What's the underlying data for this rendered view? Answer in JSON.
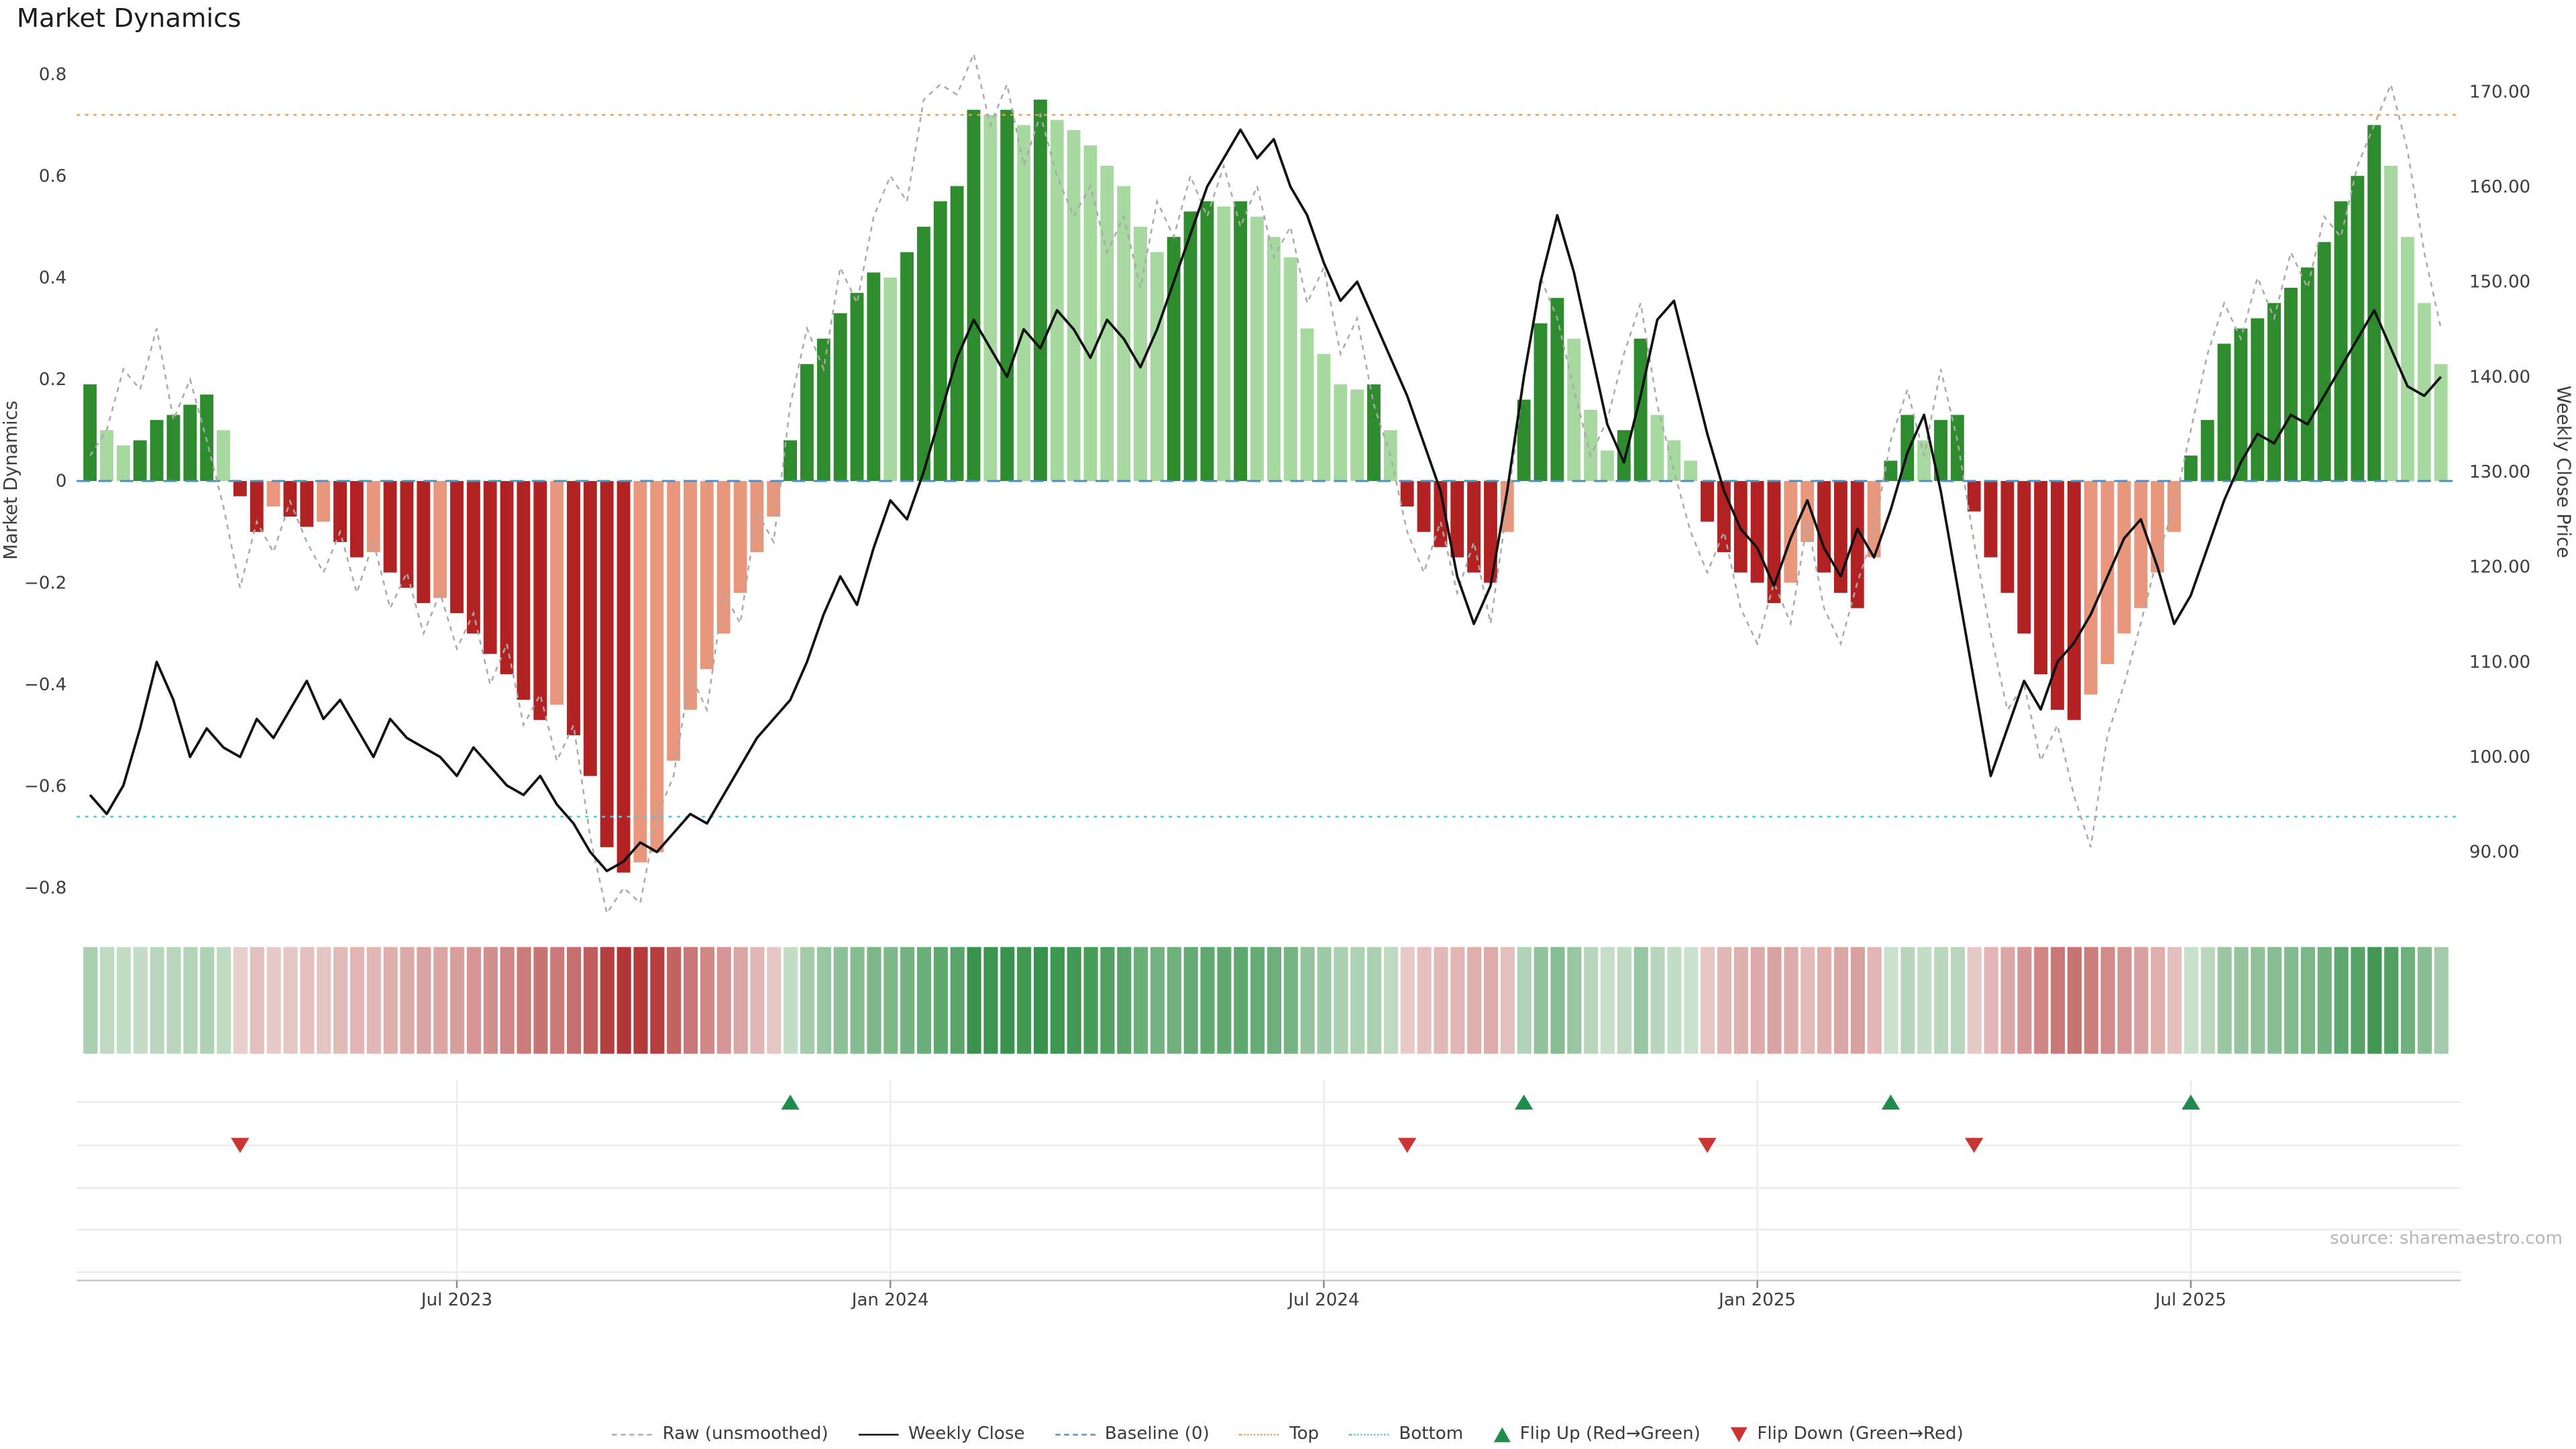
{
  "title": "Market Dynamics",
  "source": "source: sharemaestro.com",
  "colors": {
    "bar_up_strong": "#2e8b2e",
    "bar_up_weak": "#a6d8a0",
    "bar_down_strong": "#b22222",
    "bar_down_weak": "#e8977d",
    "close_line": "#111111",
    "raw_line": "#a9a9a9",
    "baseline": "#4a90c2",
    "top_line": "#dfa35f",
    "bottom_line": "#55c8d5",
    "flip_up": "#1f8b4c",
    "flip_down": "#cc3333",
    "heat_up": "#2f8f44",
    "heat_down": "#b23434",
    "heat_bg": "#f7f7f4",
    "grid": "#ebebeb",
    "axis_text": "#3c3c3c",
    "source_text": "#b5b5b5"
  },
  "axes": {
    "left_label": "Market Dynamics",
    "right_label": "Weekly Close Price",
    "left_ticks": [
      {
        "v": 0.8,
        "label": "0.8"
      },
      {
        "v": 0.6,
        "label": "0.6"
      },
      {
        "v": 0.4,
        "label": "0.4"
      },
      {
        "v": 0.2,
        "label": "0.2"
      },
      {
        "v": 0,
        "label": "0"
      },
      {
        "v": -0.2,
        "label": "−0.2"
      },
      {
        "v": -0.4,
        "label": "−0.4"
      },
      {
        "v": -0.6,
        "label": "−0.6"
      },
      {
        "v": -0.8,
        "label": "−0.8"
      }
    ],
    "right_ticks": [
      {
        "v": 170,
        "label": "170.00"
      },
      {
        "v": 160,
        "label": "160.00"
      },
      {
        "v": 150,
        "label": "150.00"
      },
      {
        "v": 140,
        "label": "140.00"
      },
      {
        "v": 130,
        "label": "130.00"
      },
      {
        "v": 120,
        "label": "120.00"
      },
      {
        "v": 110,
        "label": "110.00"
      },
      {
        "v": 100,
        "label": "100.00"
      },
      {
        "v": 90,
        "label": "90.00"
      }
    ]
  },
  "legend": [
    {
      "label": "Raw (unsmoothed)"
    },
    {
      "label": "Weekly Close"
    },
    {
      "label": "Baseline (0)"
    },
    {
      "label": "Top"
    },
    {
      "label": "Bottom"
    },
    {
      "label": "Flip Up (Red→Green)"
    },
    {
      "label": "Flip Down (Green→Red)"
    }
  ],
  "chart_data": {
    "type": "bar",
    "n_weeks": 142,
    "x_ticks": [
      {
        "week": 22,
        "label": "Jul 2023"
      },
      {
        "week": 48,
        "label": "Jan 2024"
      },
      {
        "week": 74,
        "label": "Jul 2024"
      },
      {
        "week": 100,
        "label": "Jan 2025"
      },
      {
        "week": 126,
        "label": "Jul 2025"
      }
    ],
    "ylim_left": [
      -0.85,
      0.85
    ],
    "ylim_right": [
      87,
      172
    ],
    "reference_lines": {
      "baseline": 0,
      "top": 0.72,
      "bottom": -0.66
    },
    "flip_up_weeks": [
      42,
      86,
      108,
      126
    ],
    "flip_down_weeks": [
      9,
      79,
      97,
      113
    ],
    "series": [
      {
        "name": "Market Dynamics",
        "type": "bar",
        "axis": "left",
        "values": [
          0.19,
          0.1,
          0.07,
          0.08,
          0.12,
          0.13,
          0.15,
          0.17,
          0.1,
          -0.03,
          -0.1,
          -0.05,
          -0.07,
          -0.09,
          -0.08,
          -0.12,
          -0.15,
          -0.14,
          -0.18,
          -0.21,
          -0.24,
          -0.23,
          -0.26,
          -0.3,
          -0.34,
          -0.38,
          -0.43,
          -0.47,
          -0.44,
          -0.5,
          -0.58,
          -0.72,
          -0.77,
          -0.75,
          -0.73,
          -0.55,
          -0.45,
          -0.37,
          -0.3,
          -0.22,
          -0.14,
          -0.07,
          0.08,
          0.23,
          0.28,
          0.33,
          0.37,
          0.41,
          0.4,
          0.45,
          0.5,
          0.55,
          0.58,
          0.73,
          0.72,
          0.73,
          0.7,
          0.75,
          0.71,
          0.69,
          0.66,
          0.62,
          0.58,
          0.5,
          0.45,
          0.48,
          0.53,
          0.55,
          0.54,
          0.55,
          0.52,
          0.48,
          0.44,
          0.3,
          0.25,
          0.19,
          0.18,
          0.19,
          0.1,
          -0.05,
          -0.1,
          -0.13,
          -0.15,
          -0.18,
          -0.2,
          -0.1,
          0.16,
          0.31,
          0.36,
          0.28,
          0.14,
          0.06,
          0.1,
          0.28,
          0.13,
          0.08,
          0.04,
          -0.08,
          -0.14,
          -0.18,
          -0.2,
          -0.24,
          -0.2,
          -0.12,
          -0.18,
          -0.22,
          -0.25,
          -0.15,
          0.04,
          0.13,
          0.08,
          0.12,
          0.13,
          -0.06,
          -0.15,
          -0.22,
          -0.3,
          -0.38,
          -0.45,
          -0.47,
          -0.42,
          -0.36,
          -0.3,
          -0.25,
          -0.18,
          -0.1,
          0.05,
          0.12,
          0.27,
          0.3,
          0.32,
          0.35,
          0.38,
          0.42,
          0.47,
          0.55,
          0.6,
          0.7,
          0.62,
          0.48,
          0.35,
          0.23
        ]
      },
      {
        "name": "Raw (unsmoothed)",
        "type": "line",
        "axis": "left",
        "style": "dashed-gray",
        "values": [
          0.05,
          0.1,
          0.22,
          0.18,
          0.3,
          0.12,
          0.2,
          0.08,
          -0.05,
          -0.21,
          -0.08,
          -0.14,
          -0.04,
          -0.12,
          -0.18,
          -0.1,
          -0.22,
          -0.12,
          -0.25,
          -0.18,
          -0.3,
          -0.22,
          -0.33,
          -0.26,
          -0.4,
          -0.32,
          -0.48,
          -0.42,
          -0.55,
          -0.48,
          -0.7,
          -0.85,
          -0.8,
          -0.83,
          -0.66,
          -0.58,
          -0.38,
          -0.45,
          -0.22,
          -0.28,
          -0.06,
          -0.12,
          0.15,
          0.3,
          0.22,
          0.42,
          0.35,
          0.52,
          0.6,
          0.55,
          0.75,
          0.78,
          0.76,
          0.84,
          0.7,
          0.78,
          0.62,
          0.72,
          0.6,
          0.52,
          0.58,
          0.45,
          0.52,
          0.38,
          0.55,
          0.48,
          0.6,
          0.52,
          0.62,
          0.5,
          0.58,
          0.44,
          0.5,
          0.35,
          0.42,
          0.25,
          0.32,
          0.15,
          0.05,
          -0.1,
          -0.18,
          -0.08,
          -0.22,
          -0.12,
          -0.28,
          -0.05,
          0.2,
          0.4,
          0.32,
          0.18,
          0.05,
          0.12,
          0.25,
          0.35,
          0.15,
          0.02,
          -0.1,
          -0.18,
          -0.1,
          -0.25,
          -0.32,
          -0.2,
          -0.28,
          -0.08,
          -0.25,
          -0.32,
          -0.2,
          -0.1,
          0.08,
          0.18,
          0.05,
          0.22,
          0.08,
          -0.12,
          -0.3,
          -0.45,
          -0.4,
          -0.55,
          -0.48,
          -0.62,
          -0.72,
          -0.5,
          -0.4,
          -0.28,
          -0.15,
          -0.05,
          0.1,
          0.25,
          0.35,
          0.28,
          0.4,
          0.32,
          0.45,
          0.38,
          0.52,
          0.48,
          0.62,
          0.7,
          0.78,
          0.65,
          0.45,
          0.3
        ]
      },
      {
        "name": "Weekly Close",
        "type": "line",
        "axis": "right",
        "style": "solid-black",
        "values": [
          96,
          94,
          97,
          103,
          110,
          106,
          100,
          103,
          101,
          100,
          104,
          102,
          105,
          108,
          104,
          106,
          103,
          100,
          104,
          102,
          101,
          100,
          98,
          101,
          99,
          97,
          96,
          98,
          95,
          93,
          90,
          88,
          89,
          91,
          90,
          92,
          94,
          93,
          96,
          99,
          102,
          104,
          106,
          110,
          115,
          119,
          116,
          122,
          127,
          125,
          130,
          136,
          142,
          146,
          143,
          140,
          145,
          143,
          147,
          145,
          142,
          146,
          144,
          141,
          145,
          150,
          155,
          160,
          163,
          166,
          163,
          165,
          160,
          157,
          152,
          148,
          150,
          146,
          142,
          138,
          133,
          128,
          119,
          114,
          118,
          128,
          140,
          150,
          157,
          151,
          143,
          135,
          131,
          138,
          146,
          148,
          141,
          134,
          128,
          124,
          122,
          118,
          123,
          127,
          122,
          119,
          124,
          121,
          126,
          132,
          136,
          128,
          118,
          108,
          98,
          103,
          108,
          105,
          110,
          112,
          115,
          119,
          123,
          125,
          120,
          114,
          117,
          122,
          127,
          131,
          134,
          133,
          136,
          135,
          138,
          141,
          144,
          147,
          143,
          139,
          138,
          140
        ]
      }
    ]
  }
}
